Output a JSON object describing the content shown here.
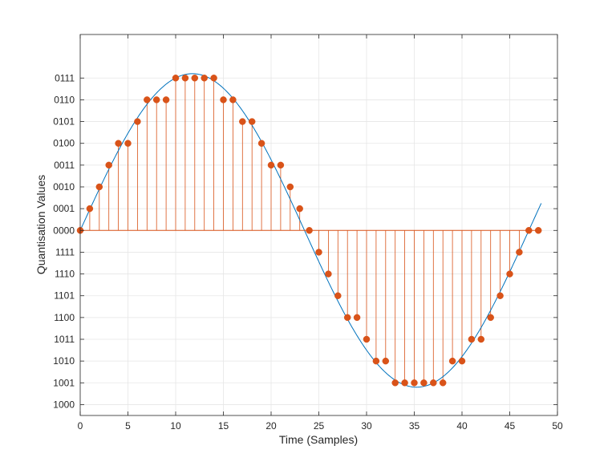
{
  "chart_data": {
    "type": "stem",
    "title": "",
    "xlabel": "Time (Samples)",
    "ylabel": "Quantisation Values",
    "xlim": [
      0,
      50
    ],
    "ylim": [
      -8.5,
      9
    ],
    "grid": true,
    "legend": "none",
    "x_ticks": [
      "0",
      "5",
      "10",
      "15",
      "20",
      "25",
      "30",
      "35",
      "40",
      "45",
      "50"
    ],
    "x_tick_values": [
      0,
      5,
      10,
      15,
      20,
      25,
      30,
      35,
      40,
      45,
      50
    ],
    "y_tick_values": [
      -8,
      -7,
      -6,
      -5,
      -4,
      -3,
      -2,
      -1,
      0,
      1,
      2,
      3,
      4,
      5,
      6,
      7
    ],
    "y_ticks": [
      "1000",
      "1001",
      "1010",
      "1011",
      "1100",
      "1101",
      "1110",
      "1111",
      "0000",
      "0001",
      "0010",
      "0011",
      "0100",
      "0101",
      "0110",
      "0111"
    ],
    "colors": {
      "stem": "#d95319",
      "curve": "#0072bd",
      "grid": "#e6e6e6",
      "axis": "#262626"
    },
    "series": [
      {
        "kind": "stem",
        "x": [
          0,
          1,
          2,
          3,
          4,
          5,
          6,
          7,
          8,
          9,
          10,
          11,
          12,
          13,
          14,
          15,
          16,
          17,
          18,
          19,
          20,
          21,
          22,
          23,
          24,
          25,
          26,
          27,
          28,
          29,
          30,
          31,
          32,
          33,
          34,
          35,
          36,
          37,
          38,
          39,
          40,
          41,
          42,
          43,
          44,
          45,
          46,
          47,
          48
        ],
        "y": [
          0,
          1,
          2,
          3,
          4,
          4,
          5,
          6,
          6,
          6,
          7,
          7,
          7,
          7,
          7,
          6,
          6,
          5,
          5,
          4,
          3,
          3,
          2,
          1,
          0,
          -1,
          -2,
          -3,
          -4,
          -4,
          -5,
          -6,
          -6,
          -7,
          -7,
          -7,
          -7,
          -7,
          -7,
          -6,
          -6,
          -5,
          -5,
          -4,
          -3,
          -2,
          -1,
          0,
          0
        ]
      },
      {
        "kind": "line",
        "function": "7.2*sin(2*pi*x/47)",
        "x_range": [
          0,
          48.3
        ]
      }
    ]
  }
}
